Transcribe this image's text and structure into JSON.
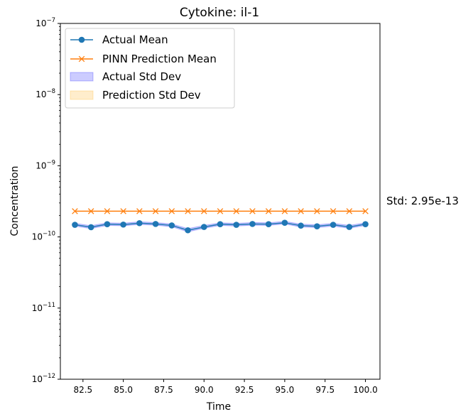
{
  "chart_data": {
    "type": "line",
    "title": "Cytokine: il-1",
    "xlabel": "Time",
    "ylabel": "Concentration",
    "yscale": "log",
    "xlim": [
      81.1,
      100.9
    ],
    "ylim": [
      1e-12,
      1e-07
    ],
    "x_ticks": [
      82.5,
      85.0,
      87.5,
      90.0,
      92.5,
      95.0,
      97.5,
      100.0
    ],
    "x_tick_labels": [
      "82.5",
      "85.0",
      "87.5",
      "90.0",
      "92.5",
      "95.0",
      "97.5",
      "100.0"
    ],
    "y_ticks": [
      {
        "value": 1e-12,
        "base": "10",
        "exp": "−12"
      },
      {
        "value": 1e-11,
        "base": "10",
        "exp": "−11"
      },
      {
        "value": 1e-10,
        "base": "10",
        "exp": "−10"
      },
      {
        "value": 1e-09,
        "base": "10",
        "exp": "−9"
      },
      {
        "value": 1e-08,
        "base": "10",
        "exp": "−8"
      },
      {
        "value": 1e-07,
        "base": "10",
        "exp": "−7"
      }
    ],
    "x": [
      82,
      83,
      84,
      85,
      86,
      87,
      88,
      89,
      90,
      91,
      92,
      93,
      94,
      95,
      96,
      97,
      98,
      99,
      100
    ],
    "series": [
      {
        "name": "Actual Mean",
        "color": "#1f77b4",
        "marker": "circle",
        "values": [
          1.48e-10,
          1.37e-10,
          1.51e-10,
          1.49e-10,
          1.56e-10,
          1.52e-10,
          1.45e-10,
          1.24e-10,
          1.38e-10,
          1.51e-10,
          1.48e-10,
          1.52e-10,
          1.51e-10,
          1.58e-10,
          1.44e-10,
          1.41e-10,
          1.48e-10,
          1.38e-10,
          1.51e-10
        ],
        "std_band": {
          "name": "Actual Std Dev",
          "color": "#0000ff",
          "opacity": 0.2,
          "lower": [
            1.42e-10,
            1.31e-10,
            1.45e-10,
            1.43e-10,
            1.5e-10,
            1.46e-10,
            1.39e-10,
            1.18e-10,
            1.32e-10,
            1.45e-10,
            1.42e-10,
            1.46e-10,
            1.45e-10,
            1.52e-10,
            1.38e-10,
            1.35e-10,
            1.42e-10,
            1.32e-10,
            1.45e-10
          ],
          "upper": [
            1.55e-10,
            1.44e-10,
            1.58e-10,
            1.56e-10,
            1.63e-10,
            1.59e-10,
            1.52e-10,
            1.31e-10,
            1.45e-10,
            1.58e-10,
            1.55e-10,
            1.59e-10,
            1.58e-10,
            1.65e-10,
            1.51e-10,
            1.48e-10,
            1.55e-10,
            1.45e-10,
            1.58e-10
          ]
        }
      },
      {
        "name": "PINN Prediction Mean",
        "color": "#ff7f0e",
        "marker": "x",
        "values": [
          2.3e-10,
          2.3e-10,
          2.3e-10,
          2.3e-10,
          2.3e-10,
          2.3e-10,
          2.3e-10,
          2.3e-10,
          2.3e-10,
          2.3e-10,
          2.3e-10,
          2.3e-10,
          2.3e-10,
          2.3e-10,
          2.3e-10,
          2.3e-10,
          2.3e-10,
          2.3e-10,
          2.3e-10
        ],
        "std_band": {
          "name": "Prediction Std Dev",
          "color": "#ffa500",
          "opacity": 0.2
        }
      }
    ],
    "legend": {
      "placement": "top-left",
      "entries": [
        "Actual Mean",
        "PINN Prediction Mean",
        "Actual Std Dev",
        "Prediction Std Dev"
      ]
    },
    "annotation": "Std: 2.95e-13",
    "grid": false
  }
}
